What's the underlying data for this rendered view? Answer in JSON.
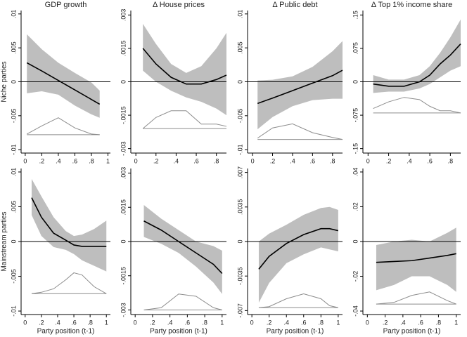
{
  "chart_data": [
    {
      "type": "line",
      "title": "GDP growth",
      "ylabel": "Niche parties",
      "xlim": [
        -0.05,
        1.03
      ],
      "xticks": [
        0,
        {
          "value": 0.2,
          "label": ".2"
        },
        {
          "value": 0.4,
          "label": ".4"
        },
        {
          "value": 0.6,
          "label": ".6"
        },
        {
          "value": 0.8,
          "label": ".8"
        },
        1
      ],
      "ylim": [
        -0.0105,
        0.0105
      ],
      "yticks": [
        {
          "value": -0.01,
          "label": "-.01"
        },
        {
          "value": -0.005,
          "label": "-.005"
        },
        0,
        {
          "value": 0.005,
          "label": ".005"
        },
        {
          "value": 0.01,
          "label": ".01"
        }
      ],
      "hline": 0,
      "x": [
        0.02,
        0.2,
        0.4,
        0.6,
        0.8,
        0.9
      ],
      "values": [
        0.0028,
        0.0016,
        0.0002,
        -0.0012,
        -0.0026,
        -0.0033
      ],
      "upper": [
        0.007,
        0.0048,
        0.0028,
        0.0013,
        -0.0001,
        -0.0013
      ],
      "lower": [
        -0.0017,
        -0.0014,
        -0.0019,
        -0.0035,
        -0.0048,
        -0.0053
      ],
      "density": [
        -0.0077,
        -0.0065,
        -0.0053,
        -0.0068,
        -0.0077,
        -0.0078
      ],
      "density_base": -0.0078,
      "color": "#000000",
      "band_color": "#bebebe",
      "density_color": "#8c8c8c"
    },
    {
      "type": "line",
      "title": "Δ House prices",
      "xlim": [
        -0.05,
        0.9
      ],
      "xticks": [
        0,
        {
          "value": 0.2,
          "label": ".2"
        },
        {
          "value": 0.4,
          "label": ".4"
        },
        {
          "value": 0.6,
          "label": ".6"
        },
        {
          "value": 0.8,
          "label": ".8"
        }
      ],
      "ylim": [
        -0.0032,
        0.0032
      ],
      "yticks": [
        {
          "value": -0.003,
          "label": "-.003"
        },
        {
          "value": -0.0015,
          "label": "-.0015"
        },
        0,
        {
          "value": 0.0015,
          "label": ".0015"
        },
        {
          "value": 0.003,
          "label": ".003"
        }
      ],
      "hline": 0,
      "x": [
        0.07,
        0.2,
        0.35,
        0.5,
        0.65,
        0.8,
        0.9
      ],
      "values": [
        0.0015,
        0.0008,
        0.0002,
        -0.0001,
        -0.0001,
        0.0001,
        0.0003
      ],
      "upper": [
        0.0026,
        0.0017,
        0.0008,
        0.0004,
        0.0007,
        0.0015,
        0.0022
      ],
      "lower": [
        0.0005,
        0,
        -0.0004,
        -0.0007,
        -0.0009,
        -0.0012,
        -0.0015
      ],
      "density": [
        -0.0021,
        -0.0016,
        -0.0013,
        -0.0013,
        -0.0019,
        -0.0019,
        -0.002
      ],
      "density_base": -0.0021,
      "color": "#000000",
      "band_color": "#bebebe",
      "density_color": "#8c8c8c"
    },
    {
      "type": "line",
      "title": "Δ Public debt",
      "xlim": [
        -0.05,
        0.9
      ],
      "xticks": [
        0,
        {
          "value": 0.2,
          "label": ".2"
        },
        {
          "value": 0.4,
          "label": ".4"
        },
        {
          "value": 0.6,
          "label": ".6"
        },
        {
          "value": 0.8,
          "label": ".8"
        }
      ],
      "ylim": [
        -0.0105,
        0.0105
      ],
      "yticks": [
        {
          "value": -0.01,
          "label": "-.01"
        },
        {
          "value": -0.005,
          "label": "-.005"
        },
        0,
        {
          "value": 0.005,
          "label": ".005"
        },
        {
          "value": 0.01,
          "label": ".01"
        }
      ],
      "hline": 0,
      "x": [
        0.05,
        0.2,
        0.4,
        0.6,
        0.8,
        0.9
      ],
      "values": [
        -0.0032,
        -0.0024,
        -0.0013,
        -0.0002,
        0.0009,
        0.0017
      ],
      "upper": [
        0.0002,
        0.0003,
        0.0008,
        0.0022,
        0.0045,
        0.006
      ],
      "lower": [
        -0.007,
        -0.0052,
        -0.0036,
        -0.0027,
        -0.0025,
        -0.0025
      ],
      "density": [
        -0.0083,
        -0.0068,
        -0.0062,
        -0.0075,
        -0.0082,
        -0.0085
      ],
      "density_base": -0.0085,
      "color": "#000000",
      "band_color": "#bebebe",
      "density_color": "#8c8c8c"
    },
    {
      "type": "line",
      "title": "Δ Top 1% income share",
      "xlim": [
        -0.05,
        0.9
      ],
      "xticks": [
        0,
        {
          "value": 0.2,
          "label": ".2"
        },
        {
          "value": 0.4,
          "label": ".4"
        },
        {
          "value": 0.6,
          "label": ".6"
        },
        {
          "value": 0.8,
          "label": ".8"
        }
      ],
      "ylim": [
        -0.16,
        0.16
      ],
      "yticks": [
        {
          "value": -0.15,
          "label": "-.15"
        },
        {
          "value": -0.075,
          "label": "-.075"
        },
        0,
        {
          "value": 0.075,
          "label": ".075"
        },
        {
          "value": 0.15,
          "label": ".15"
        }
      ],
      "hline": 0,
      "x": [
        0.05,
        0.2,
        0.35,
        0.5,
        0.6,
        0.7,
        0.8,
        0.9
      ],
      "values": [
        -0.005,
        -0.01,
        -0.01,
        0,
        0.015,
        0.04,
        0.06,
        0.085
      ],
      "upper": [
        0.015,
        0.005,
        0.005,
        0.015,
        0.035,
        0.065,
        0.1,
        0.14
      ],
      "lower": [
        -0.025,
        -0.022,
        -0.022,
        -0.015,
        -0.005,
        0.01,
        0.025,
        0.035
      ],
      "density": [
        -0.06,
        -0.045,
        -0.035,
        -0.04,
        -0.055,
        -0.065,
        -0.065,
        -0.07
      ],
      "density_base": -0.07,
      "color": "#000000",
      "band_color": "#bebebe",
      "density_color": "#8c8c8c"
    },
    {
      "type": "line",
      "ylabel": "Mainstream parties",
      "xlabel": "Party position (t-1)",
      "xlim": [
        -0.05,
        1.05
      ],
      "xticks": [
        0,
        {
          "value": 0.2,
          "label": ".2"
        },
        {
          "value": 0.4,
          "label": ".4"
        },
        {
          "value": 0.6,
          "label": ".6"
        },
        {
          "value": 0.8,
          "label": ".8"
        },
        1
      ],
      "ylim": [
        -0.0105,
        0.0105
      ],
      "yticks": [
        {
          "value": -0.01,
          "label": "-.01"
        },
        {
          "value": -0.005,
          "label": "-.005"
        },
        0,
        {
          "value": 0.005,
          "label": ".005"
        },
        {
          "value": 0.01,
          "label": ".01"
        }
      ],
      "hline": 0,
      "x": [
        0.08,
        0.2,
        0.35,
        0.5,
        0.6,
        0.7,
        0.85,
        1
      ],
      "values": [
        0.0063,
        0.0035,
        0.0012,
        0.0002,
        -0.0005,
        -0.0007,
        -0.0007,
        -0.0007
      ],
      "upper": [
        0.009,
        0.0065,
        0.0035,
        0.0015,
        0.0008,
        0.001,
        0.0018,
        0.003
      ],
      "lower": [
        0.0038,
        0.0008,
        -0.0008,
        -0.0012,
        -0.0018,
        -0.0027,
        -0.0035,
        -0.0043
      ],
      "density": [
        -0.0075,
        -0.0073,
        -0.0068,
        -0.0055,
        -0.0045,
        -0.0048,
        -0.0065,
        -0.0075
      ],
      "density_base": -0.0075,
      "color": "#000000",
      "band_color": "#bebebe",
      "density_color": "#8c8c8c"
    },
    {
      "type": "line",
      "xlabel": "Party position (t-1)",
      "xlim": [
        -0.05,
        1.05
      ],
      "xticks": [
        0,
        {
          "value": 0.2,
          "label": ".2"
        },
        {
          "value": 0.4,
          "label": ".4"
        },
        {
          "value": 0.6,
          "label": ".6"
        },
        {
          "value": 0.8,
          "label": ".8"
        },
        1
      ],
      "ylim": [
        -0.0032,
        0.0032
      ],
      "yticks": [
        {
          "value": -0.003,
          "label": "-.003"
        },
        {
          "value": -0.0015,
          "label": "-.0015"
        },
        0,
        {
          "value": 0.0015,
          "label": ".0015"
        },
        {
          "value": 0.003,
          "label": ".003"
        }
      ],
      "hline": 0,
      "x": [
        0.1,
        0.3,
        0.5,
        0.7,
        0.9,
        1
      ],
      "values": [
        0.0009,
        0.0005,
        0,
        -0.0005,
        -0.001,
        -0.0014
      ],
      "upper": [
        0.0016,
        0.001,
        0.0005,
        0,
        -0.0002,
        -0.0004
      ],
      "lower": [
        0.0002,
        -0.0001,
        -0.0005,
        -0.0011,
        -0.0018,
        -0.0023
      ],
      "density": [
        -0.003,
        -0.0029,
        -0.0023,
        -0.0024,
        -0.0029,
        -0.003
      ],
      "density_base": -0.003,
      "color": "#000000",
      "band_color": "#bebebe",
      "density_color": "#8c8c8c"
    },
    {
      "type": "line",
      "xlabel": "Party position (t-1)",
      "xlim": [
        -0.05,
        1.05
      ],
      "xticks": [
        0,
        {
          "value": 0.2,
          "label": ".2"
        },
        {
          "value": 0.4,
          "label": ".4"
        },
        {
          "value": 0.6,
          "label": ".6"
        },
        {
          "value": 0.8,
          "label": ".8"
        },
        1
      ],
      "ylim": [
        -0.0074,
        0.0074
      ],
      "yticks": [
        {
          "value": -0.007,
          "label": "-.007"
        },
        {
          "value": -0.0035,
          "label": "-.0035"
        },
        0,
        {
          "value": 0.0035,
          "label": ".0035"
        },
        {
          "value": 0.007,
          "label": ".007"
        }
      ],
      "hline": 0,
      "x": [
        0.08,
        0.2,
        0.4,
        0.6,
        0.8,
        0.9,
        1
      ],
      "values": [
        -0.0028,
        -0.0015,
        -0.0002,
        0.0007,
        0.0013,
        0.0013,
        0.0011
      ],
      "upper": [
        0,
        0.0008,
        0.0017,
        0.0027,
        0.0034,
        0.0035,
        0.0032
      ],
      "lower": [
        -0.0062,
        -0.0042,
        -0.0022,
        -0.0013,
        -0.0006,
        -0.0008,
        -0.001
      ],
      "density": [
        -0.0067,
        -0.0066,
        -0.0058,
        -0.0053,
        -0.0058,
        -0.0065,
        -0.0067
      ],
      "density_base": -0.0067,
      "color": "#000000",
      "band_color": "#bebebe",
      "density_color": "#8c8c8c"
    },
    {
      "type": "line",
      "xlabel": "Party position (t-1)",
      "xlim": [
        -0.05,
        1.05
      ],
      "xticks": [
        0,
        {
          "value": 0.2,
          "label": ".2"
        },
        {
          "value": 0.4,
          "label": ".4"
        },
        {
          "value": 0.6,
          "label": ".6"
        },
        {
          "value": 0.8,
          "label": ".8"
        },
        1
      ],
      "ylim": [
        -0.042,
        0.042
      ],
      "yticks": [
        {
          "value": -0.04,
          "label": "-.04"
        },
        {
          "value": -0.02,
          "label": "-.02"
        },
        0,
        {
          "value": 0.02,
          "label": ".02"
        },
        {
          "value": 0.04,
          "label": ".04"
        }
      ],
      "hline": 0,
      "x": [
        0.1,
        0.3,
        0.5,
        0.7,
        0.9,
        1
      ],
      "values": [
        -0.012,
        -0.0115,
        -0.011,
        -0.0095,
        -0.008,
        -0.007
      ],
      "upper": [
        -0.002,
        0,
        0.001,
        0,
        0.005,
        0.008
      ],
      "lower": [
        -0.028,
        -0.025,
        -0.02,
        -0.02,
        -0.025,
        -0.029
      ],
      "density": [
        -0.036,
        -0.035,
        -0.031,
        -0.029,
        -0.034,
        -0.036
      ],
      "density_base": -0.036,
      "color": "#000000",
      "band_color": "#bebebe",
      "density_color": "#8c8c8c"
    }
  ]
}
